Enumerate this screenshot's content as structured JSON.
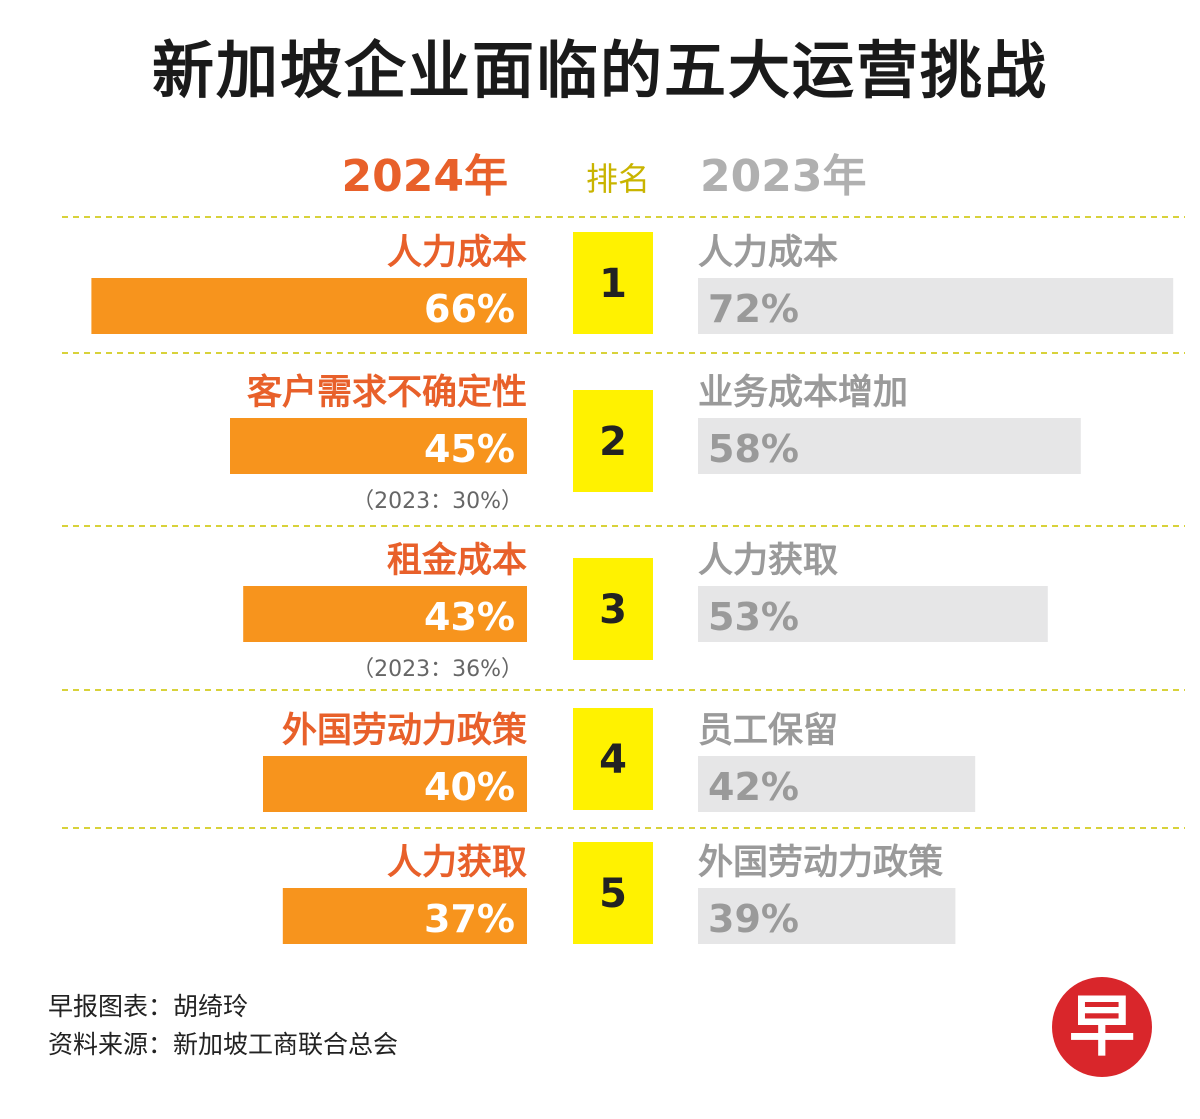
{
  "title": "新加坡企业面临的五大运营挑战",
  "headers": {
    "year_2024": "2024年",
    "rank": "排名",
    "year_2023": "2023年"
  },
  "colors": {
    "bar_2024": "#f7941d",
    "bar_2023": "#e6e6e7",
    "label_2024": "#e8602a",
    "label_2023": "#9a9a9a",
    "rank_box": "#fff200",
    "divider": "#d8d23a"
  },
  "chart_data": {
    "type": "bar",
    "title": "新加坡企业面临的五大运营挑战",
    "ranks": [
      "1",
      "2",
      "3",
      "4",
      "5"
    ],
    "series": [
      {
        "name": "2024年",
        "categories": [
          "人力成本",
          "客户需求不确定性",
          "租金成本",
          "外国劳动力政策",
          "人力获取"
        ],
        "values": [
          66,
          45,
          43,
          40,
          37
        ],
        "labels": [
          "66%",
          "45%",
          "43%",
          "40%",
          "37%"
        ],
        "notes": [
          "",
          "（2023：30%）",
          "（2023：36%）",
          "",
          ""
        ]
      },
      {
        "name": "2023年",
        "categories": [
          "人力成本",
          "业务成本增加",
          "人力获取",
          "员工保留",
          "外国劳动力政策"
        ],
        "values": [
          72,
          58,
          53,
          42,
          39
        ],
        "labels": [
          "72%",
          "58%",
          "53%",
          "42%",
          "39%"
        ]
      }
    ]
  },
  "footer": {
    "line1": "早报图表：胡绮玲",
    "line2": "资料来源：新加坡工商联合总会"
  },
  "logo": {
    "glyph": "早"
  }
}
